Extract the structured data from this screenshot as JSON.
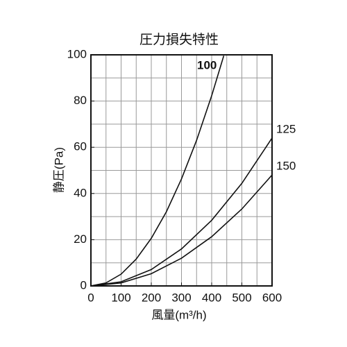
{
  "chart_data": {
    "type": "line",
    "title": "圧力損失特性",
    "xlabel": "風量(m³/h)",
    "ylabel": "静圧(Pa)",
    "xlim": [
      0,
      600
    ],
    "xticks": [
      0,
      100,
      200,
      300,
      400,
      500,
      600
    ],
    "ylim": [
      0,
      100
    ],
    "yticks": [
      0,
      20,
      40,
      60,
      80,
      100
    ],
    "grid": true,
    "grid_step_x": 50,
    "grid_step_y": 10,
    "series": [
      {
        "name": "100",
        "color": "#111111",
        "x": [
          0,
          50,
          100,
          150,
          200,
          250,
          300,
          350,
          400,
          440
        ],
        "values": [
          0,
          1.3,
          5.1,
          11.6,
          20.6,
          32.1,
          46.3,
          63.0,
          82.3,
          99.6
        ]
      },
      {
        "name": "125",
        "color": "#111111",
        "x": [
          0,
          100,
          200,
          300,
          400,
          500,
          600
        ],
        "values": [
          0,
          1.8,
          7.1,
          16,
          28.4,
          44.4,
          64
        ]
      },
      {
        "name": "150",
        "color": "#111111",
        "x": [
          0,
          100,
          200,
          300,
          400,
          500,
          600
        ],
        "values": [
          0,
          1.3,
          5.3,
          12,
          21.3,
          33.3,
          48
        ]
      }
    ]
  }
}
